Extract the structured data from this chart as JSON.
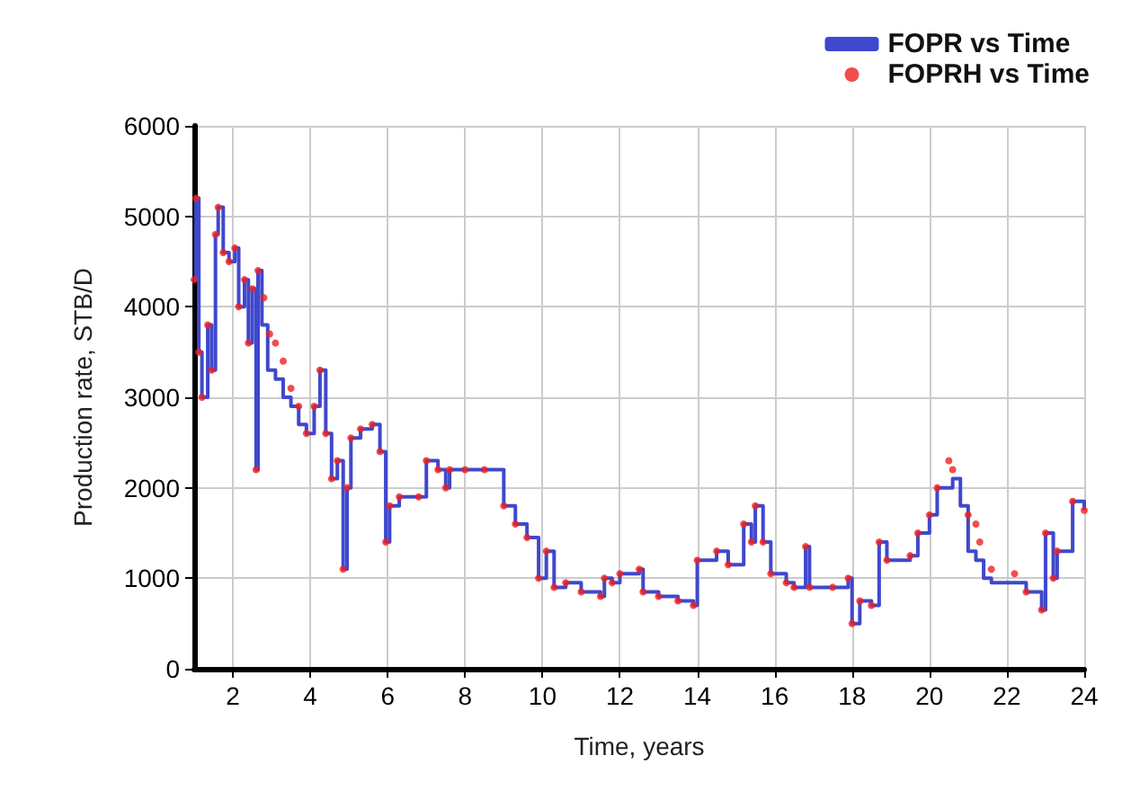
{
  "chart_data": {
    "type": "step",
    "xlabel": "Time, years",
    "ylabel": "Production rate, STB/D",
    "xlim": [
      1,
      24
    ],
    "xticks": [
      2,
      4,
      6,
      8,
      10,
      12,
      14,
      16,
      18,
      20,
      22,
      24
    ],
    "ylim": [
      0,
      6000
    ],
    "yticks": [
      0,
      1000,
      2000,
      3000,
      4000,
      5000,
      6000
    ],
    "grid": true,
    "legend": "top right",
    "series": [
      {
        "name": "FOPR vs Time",
        "color": "#3f48cc",
        "marker": "none",
        "x": [
          1.0,
          1.05,
          1.12,
          1.2,
          1.35,
          1.45,
          1.55,
          1.62,
          1.75,
          1.9,
          2.05,
          2.15,
          2.3,
          2.4,
          2.5,
          2.6,
          2.65,
          2.75,
          2.9,
          3.1,
          3.3,
          3.5,
          3.7,
          3.9,
          4.1,
          4.25,
          4.4,
          4.55,
          4.7,
          4.85,
          4.95,
          5.05,
          5.3,
          5.6,
          5.8,
          5.95,
          6.05,
          6.3,
          6.8,
          7.0,
          7.3,
          7.5,
          7.6,
          9.0,
          9.3,
          9.6,
          9.9,
          10.1,
          10.3,
          10.6,
          11.0,
          11.5,
          11.6,
          11.8,
          12.0,
          12.5,
          12.6,
          13.0,
          13.5,
          13.9,
          14.0,
          14.5,
          14.8,
          15.2,
          15.4,
          15.5,
          15.7,
          15.9,
          16.3,
          16.5,
          16.8,
          16.9,
          17.5,
          17.9,
          18.0,
          18.2,
          18.5,
          18.7,
          18.9,
          19.5,
          19.7,
          20.0,
          20.2,
          20.6,
          20.8,
          21.0,
          21.2,
          21.4,
          21.6,
          22.2,
          22.5,
          22.9,
          23.0,
          23.2,
          23.3,
          23.7,
          24.0
        ],
        "values": [
          4300,
          5200,
          3500,
          3000,
          3800,
          3300,
          4800,
          5100,
          4600,
          4500,
          4650,
          4000,
          4300,
          3600,
          4200,
          2200,
          4400,
          3800,
          3300,
          3200,
          3000,
          2900,
          2700,
          2600,
          2900,
          3300,
          2600,
          2100,
          2300,
          1100,
          2000,
          2550,
          2650,
          2700,
          2400,
          1400,
          1800,
          1900,
          1900,
          2300,
          2200,
          2000,
          2200,
          1800,
          1600,
          1450,
          1000,
          1300,
          900,
          950,
          850,
          800,
          1000,
          950,
          1050,
          1100,
          850,
          800,
          750,
          700,
          1200,
          1300,
          1150,
          1600,
          1400,
          1800,
          1400,
          1050,
          950,
          900,
          1350,
          900,
          900,
          1000,
          500,
          750,
          700,
          1400,
          1200,
          1250,
          1500,
          1700,
          2000,
          2100,
          1800,
          1300,
          1200,
          1000,
          950,
          950,
          850,
          650,
          1500,
          1000,
          1300,
          1850,
          1750
        ]
      },
      {
        "name": "FOPRH vs Time",
        "type": "scatter",
        "color": "#f02020",
        "marker": "circle",
        "x": [
          1.0,
          1.05,
          1.12,
          1.2,
          1.35,
          1.45,
          1.55,
          1.62,
          1.75,
          1.9,
          2.05,
          2.15,
          2.3,
          2.4,
          2.5,
          2.6,
          2.65,
          2.8,
          2.95,
          3.1,
          3.3,
          3.5,
          3.7,
          3.9,
          4.1,
          4.25,
          4.4,
          4.55,
          4.7,
          4.85,
          4.95,
          5.05,
          5.3,
          5.6,
          5.8,
          5.95,
          6.05,
          6.3,
          6.8,
          7.0,
          7.3,
          7.5,
          7.6,
          8.0,
          8.5,
          9.0,
          9.3,
          9.6,
          9.9,
          10.1,
          10.3,
          10.6,
          11.0,
          11.5,
          11.6,
          11.8,
          12.0,
          12.5,
          12.6,
          13.0,
          13.5,
          13.9,
          14.0,
          14.5,
          14.8,
          15.2,
          15.4,
          15.5,
          15.7,
          15.9,
          16.3,
          16.5,
          16.8,
          16.9,
          17.5,
          17.9,
          18.0,
          18.2,
          18.5,
          18.7,
          18.9,
          19.5,
          19.7,
          20.0,
          20.2,
          20.5,
          20.6,
          21.0,
          21.2,
          21.3,
          21.6,
          22.2,
          22.5,
          22.9,
          23.0,
          23.2,
          23.3,
          23.7,
          24.0
        ],
        "values": [
          4300,
          5200,
          3500,
          3000,
          3800,
          3300,
          4800,
          5100,
          4600,
          4500,
          4650,
          4000,
          4300,
          3600,
          4200,
          2200,
          4400,
          4100,
          3700,
          3600,
          3400,
          3100,
          2900,
          2600,
          2900,
          3300,
          2600,
          2100,
          2300,
          1100,
          2000,
          2550,
          2650,
          2700,
          2400,
          1400,
          1800,
          1900,
          1900,
          2300,
          2200,
          2000,
          2200,
          2200,
          2200,
          1800,
          1600,
          1450,
          1000,
          1300,
          900,
          950,
          850,
          800,
          1000,
          950,
          1050,
          1100,
          850,
          800,
          750,
          700,
          1200,
          1300,
          1150,
          1600,
          1400,
          1800,
          1400,
          1050,
          950,
          900,
          1350,
          900,
          900,
          1000,
          500,
          750,
          700,
          1400,
          1200,
          1250,
          1500,
          1700,
          2000,
          2300,
          2200,
          1700,
          1600,
          1400,
          1100,
          1050,
          850,
          650,
          1500,
          1000,
          1300,
          1850,
          1750
        ]
      }
    ]
  }
}
